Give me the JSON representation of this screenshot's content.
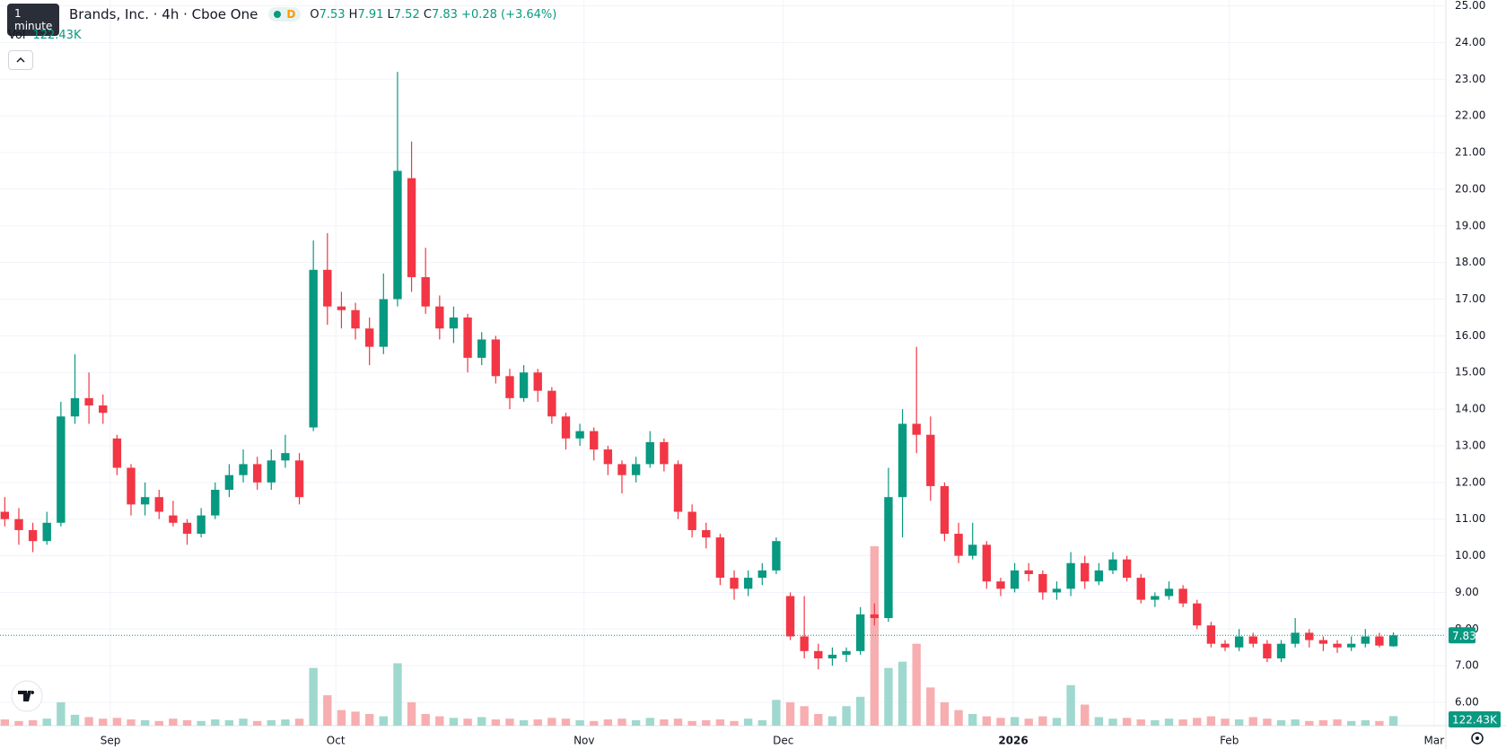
{
  "header": {
    "tooltip": "1 minute",
    "symbol": "Brands, Inc. · 4h · Cboe One",
    "badge": "D",
    "o_label": "O",
    "h_label": "H",
    "l_label": "L",
    "c_label": "C",
    "change": "+0.28 (+3.64%)",
    "vol_label": "Vol"
  },
  "chart_data": {
    "type": "candlestick",
    "up_color": "#089981",
    "down_color": "#f23645",
    "vol_up_color": "#9fd8ce",
    "vol_down_color": "#f7aeb0",
    "ylim": [
      5.365,
      25.16
    ],
    "yticks": [
      {
        "value": 6,
        "label": "6.00"
      },
      {
        "value": 7,
        "label": "7.00"
      },
      {
        "value": 8,
        "label": "8.00"
      },
      {
        "value": 9,
        "label": "9.00"
      },
      {
        "value": 10,
        "label": "10.00"
      },
      {
        "value": 11,
        "label": "11.00"
      },
      {
        "value": 12,
        "label": "12.00"
      },
      {
        "value": 13,
        "label": "13.00"
      },
      {
        "value": 14,
        "label": "14.00"
      },
      {
        "value": 15,
        "label": "15.00"
      },
      {
        "value": 16,
        "label": "16.00"
      },
      {
        "value": 17,
        "label": "17.00"
      },
      {
        "value": 18,
        "label": "18.00"
      },
      {
        "value": 19,
        "label": "19.00"
      },
      {
        "value": 20,
        "label": "20.00"
      },
      {
        "value": 21,
        "label": "21.00"
      },
      {
        "value": 22,
        "label": "22.00"
      },
      {
        "value": 23,
        "label": "23.00"
      },
      {
        "value": 24,
        "label": "24.00"
      },
      {
        "value": 25,
        "label": "25.00"
      }
    ],
    "xlim": [
      -0.342,
      102.74
    ],
    "xticks": [
      {
        "value": 7.53,
        "label": "Sep"
      },
      {
        "value": 23.6,
        "label": "Oct"
      },
      {
        "value": 41.3,
        "label": "Nov"
      },
      {
        "value": 55.5,
        "label": "Dec"
      },
      {
        "value": 71.9,
        "label": "2026"
      },
      {
        "value": 87.3,
        "label": "Feb"
      },
      {
        "value": 101.9,
        "label": "Mar"
      }
    ],
    "grid": true,
    "vlim": [
      0,
      3000
    ],
    "last_volume_label": "122.43K",
    "candles": [
      [
        11.2,
        11.6,
        10.8,
        11.0
      ],
      [
        11.0,
        11.3,
        10.3,
        10.7
      ],
      [
        10.7,
        10.9,
        10.1,
        10.4
      ],
      [
        10.4,
        11.2,
        10.3,
        10.9
      ],
      [
        10.9,
        14.2,
        10.8,
        13.8
      ],
      [
        13.8,
        15.5,
        13.6,
        14.3
      ],
      [
        14.3,
        15.0,
        13.6,
        14.1
      ],
      [
        14.1,
        14.4,
        13.6,
        13.9
      ],
      [
        13.2,
        13.3,
        12.2,
        12.4
      ],
      [
        12.4,
        12.5,
        11.1,
        11.4
      ],
      [
        11.4,
        12.0,
        11.1,
        11.6
      ],
      [
        11.6,
        11.8,
        11.0,
        11.2
      ],
      [
        11.1,
        11.5,
        10.8,
        10.9
      ],
      [
        10.9,
        11.0,
        10.3,
        10.6
      ],
      [
        10.6,
        11.3,
        10.5,
        11.1
      ],
      [
        11.1,
        12.0,
        11.0,
        11.8
      ],
      [
        11.8,
        12.5,
        11.6,
        12.2
      ],
      [
        12.2,
        12.9,
        12.0,
        12.5
      ],
      [
        12.5,
        12.7,
        11.8,
        12.0
      ],
      [
        12.0,
        12.9,
        11.8,
        12.6
      ],
      [
        12.6,
        13.3,
        12.4,
        12.8
      ],
      [
        12.6,
        12.8,
        11.4,
        11.6
      ],
      [
        13.5,
        18.6,
        13.4,
        17.8
      ],
      [
        17.8,
        18.8,
        16.3,
        16.8
      ],
      [
        16.8,
        17.2,
        16.2,
        16.7
      ],
      [
        16.7,
        16.9,
        15.9,
        16.2
      ],
      [
        16.2,
        16.5,
        15.2,
        15.7
      ],
      [
        15.7,
        17.7,
        15.5,
        17.0
      ],
      [
        17.0,
        23.2,
        16.8,
        20.5
      ],
      [
        20.3,
        21.3,
        17.2,
        17.6
      ],
      [
        17.6,
        18.4,
        16.6,
        16.8
      ],
      [
        16.8,
        17.1,
        15.9,
        16.2
      ],
      [
        16.2,
        16.8,
        15.8,
        16.5
      ],
      [
        16.5,
        16.6,
        15.0,
        15.4
      ],
      [
        15.4,
        16.1,
        15.2,
        15.9
      ],
      [
        15.9,
        16.0,
        14.7,
        14.9
      ],
      [
        14.9,
        15.1,
        14.0,
        14.3
      ],
      [
        14.3,
        15.2,
        14.2,
        15.0
      ],
      [
        15.0,
        15.1,
        14.2,
        14.5
      ],
      [
        14.5,
        14.6,
        13.6,
        13.8
      ],
      [
        13.8,
        13.9,
        12.9,
        13.2
      ],
      [
        13.2,
        13.6,
        13.0,
        13.4
      ],
      [
        13.4,
        13.5,
        12.6,
        12.9
      ],
      [
        12.9,
        13.0,
        12.2,
        12.5
      ],
      [
        12.5,
        12.6,
        11.7,
        12.2
      ],
      [
        12.2,
        12.7,
        12.0,
        12.5
      ],
      [
        12.5,
        13.4,
        12.4,
        13.1
      ],
      [
        13.1,
        13.2,
        12.3,
        12.5
      ],
      [
        12.5,
        12.6,
        11.0,
        11.2
      ],
      [
        11.2,
        11.4,
        10.5,
        10.7
      ],
      [
        10.7,
        10.9,
        10.2,
        10.5
      ],
      [
        10.5,
        10.6,
        9.2,
        9.4
      ],
      [
        9.4,
        9.6,
        8.8,
        9.1
      ],
      [
        9.1,
        9.6,
        8.9,
        9.4
      ],
      [
        9.4,
        9.8,
        9.2,
        9.6
      ],
      [
        9.6,
        10.5,
        9.5,
        10.4
      ],
      [
        8.9,
        9.0,
        7.7,
        7.8
      ],
      [
        7.8,
        8.9,
        7.2,
        7.4
      ],
      [
        7.4,
        7.6,
        6.9,
        7.2
      ],
      [
        7.2,
        7.5,
        7.0,
        7.3
      ],
      [
        7.3,
        7.5,
        7.1,
        7.4
      ],
      [
        7.4,
        8.6,
        7.3,
        8.4
      ],
      [
        8.4,
        8.7,
        8.1,
        8.3
      ],
      [
        8.3,
        12.4,
        8.2,
        11.6
      ],
      [
        11.6,
        14.0,
        10.5,
        13.6
      ],
      [
        13.6,
        15.7,
        12.8,
        13.3
      ],
      [
        13.3,
        13.8,
        11.5,
        11.9
      ],
      [
        11.9,
        12.0,
        10.4,
        10.6
      ],
      [
        10.6,
        10.9,
        9.8,
        10.0
      ],
      [
        10.0,
        10.9,
        9.9,
        10.3
      ],
      [
        10.3,
        10.4,
        9.1,
        9.3
      ],
      [
        9.3,
        9.4,
        8.9,
        9.1
      ],
      [
        9.1,
        9.8,
        9.0,
        9.6
      ],
      [
        9.6,
        9.8,
        9.3,
        9.5
      ],
      [
        9.5,
        9.6,
        8.8,
        9.0
      ],
      [
        9.0,
        9.3,
        8.8,
        9.1
      ],
      [
        9.1,
        10.1,
        8.9,
        9.8
      ],
      [
        9.8,
        10.0,
        9.1,
        9.3
      ],
      [
        9.3,
        9.8,
        9.2,
        9.6
      ],
      [
        9.6,
        10.1,
        9.5,
        9.9
      ],
      [
        9.9,
        10.0,
        9.3,
        9.4
      ],
      [
        9.4,
        9.5,
        8.7,
        8.8
      ],
      [
        8.8,
        9.0,
        8.6,
        8.9
      ],
      [
        8.9,
        9.3,
        8.8,
        9.1
      ],
      [
        9.1,
        9.2,
        8.6,
        8.7
      ],
      [
        8.7,
        8.8,
        8.0,
        8.1
      ],
      [
        8.1,
        8.2,
        7.5,
        7.6
      ],
      [
        7.6,
        7.7,
        7.4,
        7.5
      ],
      [
        7.5,
        8.0,
        7.4,
        7.8
      ],
      [
        7.8,
        7.9,
        7.5,
        7.6
      ],
      [
        7.6,
        7.7,
        7.1,
        7.2
      ],
      [
        7.2,
        7.7,
        7.1,
        7.6
      ],
      [
        7.6,
        8.3,
        7.5,
        7.9
      ],
      [
        7.9,
        8.0,
        7.5,
        7.7
      ],
      [
        7.7,
        7.8,
        7.4,
        7.6
      ],
      [
        7.6,
        7.7,
        7.35,
        7.5
      ],
      [
        7.5,
        7.8,
        7.4,
        7.6
      ],
      [
        7.6,
        8.0,
        7.5,
        7.8
      ],
      [
        7.8,
        7.9,
        7.5,
        7.55
      ],
      [
        7.53,
        7.91,
        7.52,
        7.83
      ]
    ],
    "volumes": [
      80,
      60,
      70,
      90,
      300,
      140,
      110,
      90,
      100,
      80,
      70,
      60,
      90,
      70,
      60,
      80,
      70,
      90,
      60,
      70,
      80,
      90,
      740,
      390,
      200,
      180,
      150,
      120,
      800,
      300,
      150,
      120,
      100,
      90,
      110,
      80,
      90,
      70,
      80,
      100,
      90,
      70,
      60,
      80,
      90,
      70,
      100,
      80,
      90,
      60,
      70,
      80,
      60,
      90,
      70,
      330,
      300,
      250,
      150,
      120,
      250,
      370,
      2300,
      740,
      820,
      1050,
      490,
      300,
      200,
      150,
      120,
      100,
      110,
      90,
      120,
      100,
      520,
      270,
      110,
      90,
      100,
      80,
      70,
      90,
      80,
      100,
      120,
      90,
      80,
      110,
      90,
      70,
      80,
      60,
      70,
      80,
      60,
      70,
      60,
      122.43
    ]
  }
}
